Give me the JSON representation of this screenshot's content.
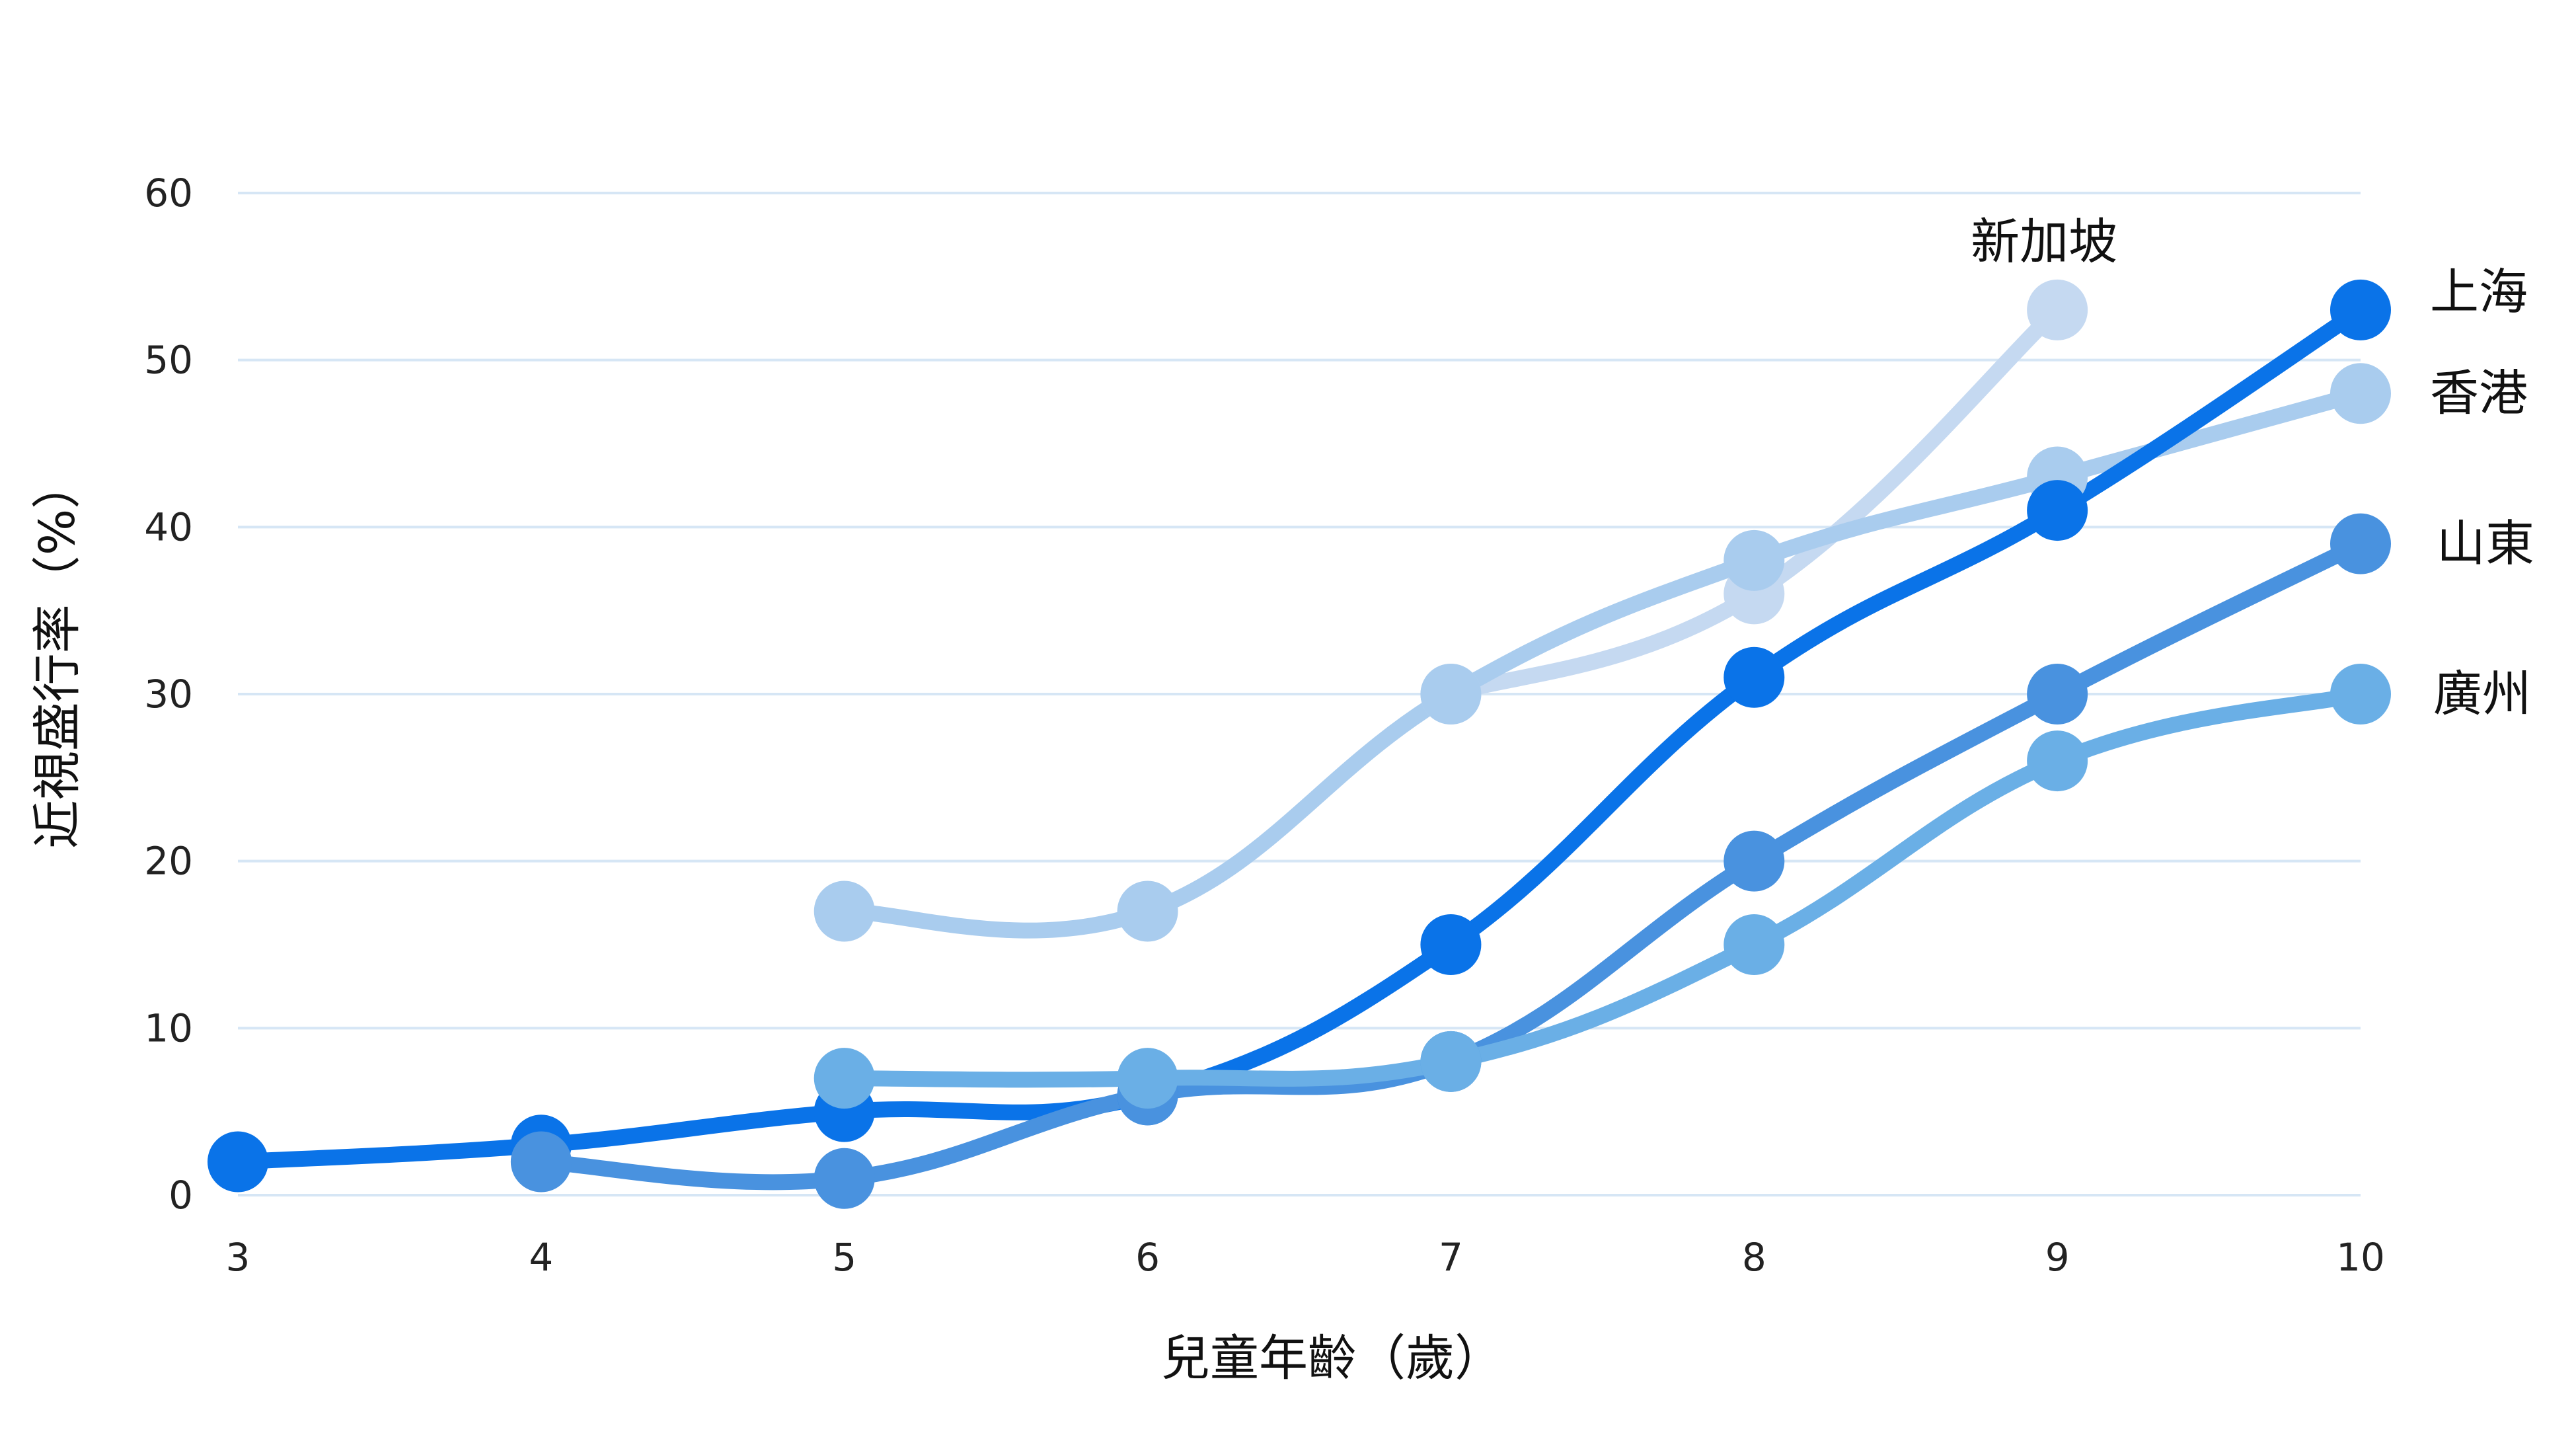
{
  "chart_data": {
    "type": "line",
    "xlabel": "兒童年齡（歲）",
    "ylabel": "近視盛行率（%）",
    "x": [
      3,
      4,
      5,
      6,
      7,
      8,
      9,
      10
    ],
    "xlim": [
      3,
      10
    ],
    "ylim": [
      0,
      60
    ],
    "yticks": [
      0,
      10,
      20,
      30,
      40,
      50,
      60
    ],
    "grid": "horizontal",
    "legend": "direct labels at line ends",
    "series": [
      {
        "name": "新加坡",
        "color": "#c5d9f1",
        "points": [
          [
            7,
            30
          ],
          [
            8,
            36
          ],
          [
            9,
            53
          ]
        ]
      },
      {
        "name": "香港",
        "color": "#a9ccee",
        "points": [
          [
            5,
            17
          ],
          [
            6,
            17
          ],
          [
            7,
            30
          ],
          [
            8,
            38
          ],
          [
            9,
            43
          ],
          [
            10,
            48
          ]
        ]
      },
      {
        "name": "上海",
        "color": "#0a73e8",
        "points": [
          [
            3,
            2
          ],
          [
            4,
            3
          ],
          [
            5,
            5
          ],
          [
            6,
            6
          ],
          [
            7,
            15
          ],
          [
            8,
            31
          ],
          [
            9,
            41
          ],
          [
            10,
            53
          ]
        ]
      },
      {
        "name": "山東",
        "color": "#4992df",
        "points": [
          [
            4,
            2
          ],
          [
            5,
            1
          ],
          [
            6,
            6
          ],
          [
            7,
            8
          ],
          [
            8,
            20
          ],
          [
            9,
            30
          ],
          [
            10,
            39
          ]
        ]
      },
      {
        "name": "廣州",
        "color": "#6aafe6",
        "points": [
          [
            5,
            7
          ],
          [
            6,
            7
          ],
          [
            7,
            8
          ],
          [
            8,
            15
          ],
          [
            9,
            26
          ],
          [
            10,
            30
          ]
        ]
      }
    ]
  }
}
